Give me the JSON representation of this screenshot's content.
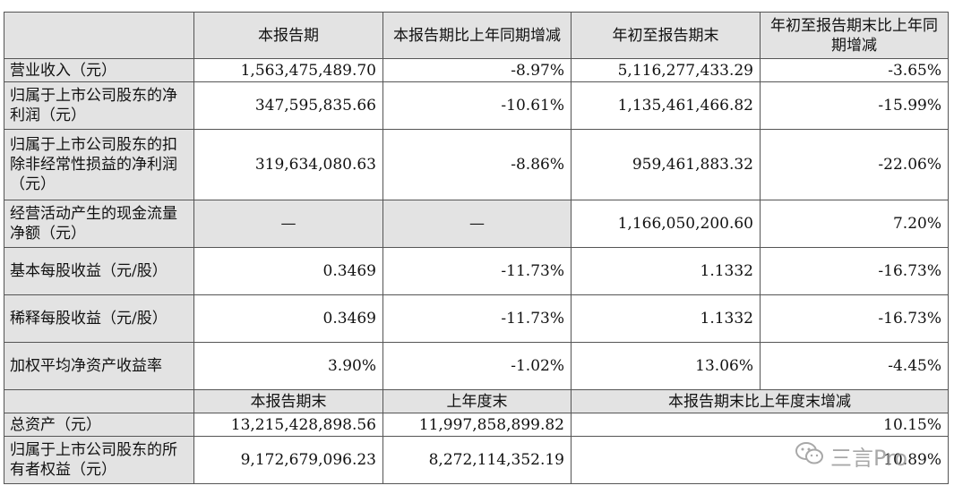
{
  "header": {
    "col1": "本报告期",
    "col2": "本报告期比上年同期增减",
    "col3": "年初至报告期末",
    "col4": "年初至报告期末比上年同期增减"
  },
  "rows": [
    {
      "label": "营业收入（元）",
      "v1": "1,563,475,489.70",
      "v2": "-8.97%",
      "v3": "5,116,277,433.29",
      "v4": "-3.65%"
    },
    {
      "label": "归属于上市公司股东的净利润（元）",
      "v1": "347,595,835.66",
      "v2": "-10.61%",
      "v3": "1,135,461,466.82",
      "v4": "-15.99%"
    },
    {
      "label": "归属于上市公司股东的扣除非经常性损益的净利润（元）",
      "v1": "319,634,080.63",
      "v2": "-8.86%",
      "v3": "959,461,883.32",
      "v4": "-22.06%"
    },
    {
      "label": "经营活动产生的现金流量净额（元）",
      "v1": "—",
      "v2": "—",
      "v3": "1,166,050,200.60",
      "v4": "7.20%"
    },
    {
      "label": "基本每股收益（元/股）",
      "v1": "0.3469",
      "v2": "-11.73%",
      "v3": "1.1332",
      "v4": "-16.73%"
    },
    {
      "label": "稀释每股收益（元/股）",
      "v1": "0.3469",
      "v2": "-11.73%",
      "v3": "1.1332",
      "v4": "-16.73%"
    },
    {
      "label": "加权平均净资产收益率",
      "v1": "3.90%",
      "v2": "-1.02%",
      "v3": "13.06%",
      "v4": "-4.45%"
    }
  ],
  "header2": {
    "col1": "本报告期末",
    "col2": "上年度末",
    "col3": "本报告期末比上年度末增减"
  },
  "rows2": [
    {
      "label": "总资产（元）",
      "v1": "13,215,428,898.56",
      "v2": "11,997,858,899.82",
      "v3": "10.15%"
    },
    {
      "label": "归属于上市公司股东的所有者权益（元）",
      "v1": "9,172,679,096.23",
      "v2": "8,272,114,352.19",
      "v3": "10.89%"
    }
  ],
  "watermark": {
    "text": "三言Pro",
    "icon": "wechat-icon"
  }
}
